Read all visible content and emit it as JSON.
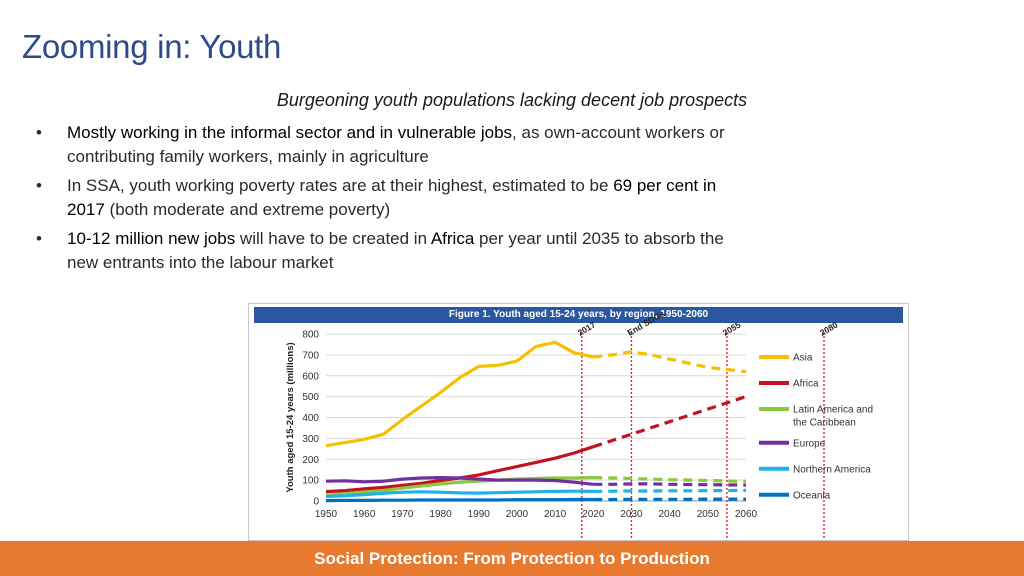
{
  "slide": {
    "title": "Zooming in: Youth",
    "subtitle": "Burgeoning youth populations lacking decent job prospects",
    "bullets": [
      {
        "marker": "•",
        "hl1": "Mostly working in the informal sector and in vulnerable jobs",
        "rest1": ", as own-account workers or contributing family workers, mainly in agriculture"
      },
      {
        "marker": "•",
        "pre2": "In SSA, youth working poverty rates are at their highest, estimated to be ",
        "hl2": "69 per cent in 2017",
        "rest2": " (both moderate and extreme poverty)"
      },
      {
        "marker": "•",
        "hl3": "10-12 million new jobs",
        "mid3": " will have to be created in ",
        "hl3b": "Africa",
        "rest3": " per year until 2035 to absorb the new entrants into the labour market"
      }
    ],
    "footer": "Social Protection: From Protection to Production"
  },
  "chart_data": {
    "type": "line",
    "title": "Figure 1. Youth aged 15-24 years, by region, 1950-2060",
    "ylabel": "Youth aged 15-24 years (millions)",
    "xlabel": "",
    "xlim": [
      1950,
      2060
    ],
    "ylim": [
      0,
      800
    ],
    "xticks": [
      "1950",
      "1960",
      "1970",
      "1980",
      "1990",
      "2000",
      "2010",
      "2020",
      "2030",
      "2040",
      "2050",
      "2060"
    ],
    "yticks": [
      "0",
      "100",
      "200",
      "300",
      "400",
      "500",
      "600",
      "700",
      "800"
    ],
    "projection_start": 2020,
    "markers": [
      {
        "year": 2017,
        "label": "2017"
      },
      {
        "year": 2030,
        "label": "End SDGs"
      },
      {
        "year": 2055,
        "label": "2055"
      },
      {
        "year": 2080,
        "label": "2080"
      }
    ],
    "series": [
      {
        "name": "Asia",
        "color": "#f5c000",
        "x": [
          1950,
          1955,
          1960,
          1965,
          1970,
          1975,
          1980,
          1985,
          1990,
          1995,
          2000,
          2005,
          2010,
          2015,
          2020,
          2025,
          2030,
          2035,
          2040,
          2045,
          2050,
          2055,
          2060
        ],
        "values": [
          265,
          280,
          295,
          320,
          390,
          455,
          520,
          590,
          645,
          650,
          670,
          740,
          760,
          710,
          690,
          700,
          715,
          700,
          680,
          660,
          640,
          630,
          620
        ]
      },
      {
        "name": "Africa",
        "color": "#c0151e",
        "x": [
          1950,
          1955,
          1960,
          1965,
          1970,
          1975,
          1980,
          1985,
          1990,
          1995,
          2000,
          2005,
          2010,
          2015,
          2020,
          2025,
          2030,
          2035,
          2040,
          2045,
          2050,
          2055,
          2060
        ],
        "values": [
          45,
          50,
          58,
          65,
          75,
          85,
          98,
          110,
          125,
          145,
          165,
          185,
          205,
          230,
          260,
          290,
          320,
          350,
          380,
          410,
          440,
          470,
          500
        ]
      },
      {
        "name": "Latin America and the Caribbean",
        "color": "#8dc63f",
        "x": [
          1950,
          1955,
          1960,
          1965,
          1970,
          1975,
          1980,
          1985,
          1990,
          1995,
          2000,
          2005,
          2010,
          2015,
          2020,
          2025,
          2030,
          2035,
          2040,
          2045,
          2050,
          2055,
          2060
        ],
        "values": [
          28,
          35,
          42,
          50,
          62,
          72,
          82,
          90,
          95,
          100,
          105,
          108,
          110,
          110,
          112,
          110,
          108,
          105,
          102,
          100,
          98,
          96,
          94
        ]
      },
      {
        "name": "Europe",
        "color": "#7030a0",
        "x": [
          1950,
          1955,
          1960,
          1965,
          1970,
          1975,
          1980,
          1985,
          1990,
          1995,
          2000,
          2005,
          2010,
          2015,
          2020,
          2025,
          2030,
          2035,
          2040,
          2045,
          2050,
          2055,
          2060
        ],
        "values": [
          95,
          97,
          92,
          95,
          105,
          110,
          112,
          110,
          105,
          100,
          100,
          100,
          98,
          90,
          80,
          80,
          82,
          82,
          80,
          79,
          78,
          77,
          76
        ]
      },
      {
        "name": "Northern America",
        "color": "#1fb2e8",
        "x": [
          1950,
          1955,
          1960,
          1965,
          1970,
          1975,
          1980,
          1985,
          1990,
          1995,
          2000,
          2005,
          2010,
          2015,
          2020,
          2025,
          2030,
          2035,
          2040,
          2045,
          2050,
          2055,
          2060
        ],
        "values": [
          22,
          25,
          30,
          37,
          42,
          44,
          42,
          39,
          38,
          40,
          42,
          44,
          46,
          47,
          46,
          47,
          48,
          48,
          49,
          49,
          50,
          50,
          51
        ]
      },
      {
        "name": "Oceania",
        "color": "#0070c0",
        "x": [
          1950,
          1955,
          1960,
          1965,
          1970,
          1975,
          1980,
          1985,
          1990,
          1995,
          2000,
          2005,
          2010,
          2015,
          2020,
          2025,
          2030,
          2035,
          2040,
          2045,
          2050,
          2055,
          2060
        ],
        "values": [
          2,
          3,
          3,
          4,
          4,
          5,
          5,
          5,
          5,
          5,
          6,
          6,
          6,
          7,
          7,
          7,
          8,
          8,
          8,
          8,
          9,
          9,
          9
        ]
      }
    ],
    "legend_position": "right"
  }
}
